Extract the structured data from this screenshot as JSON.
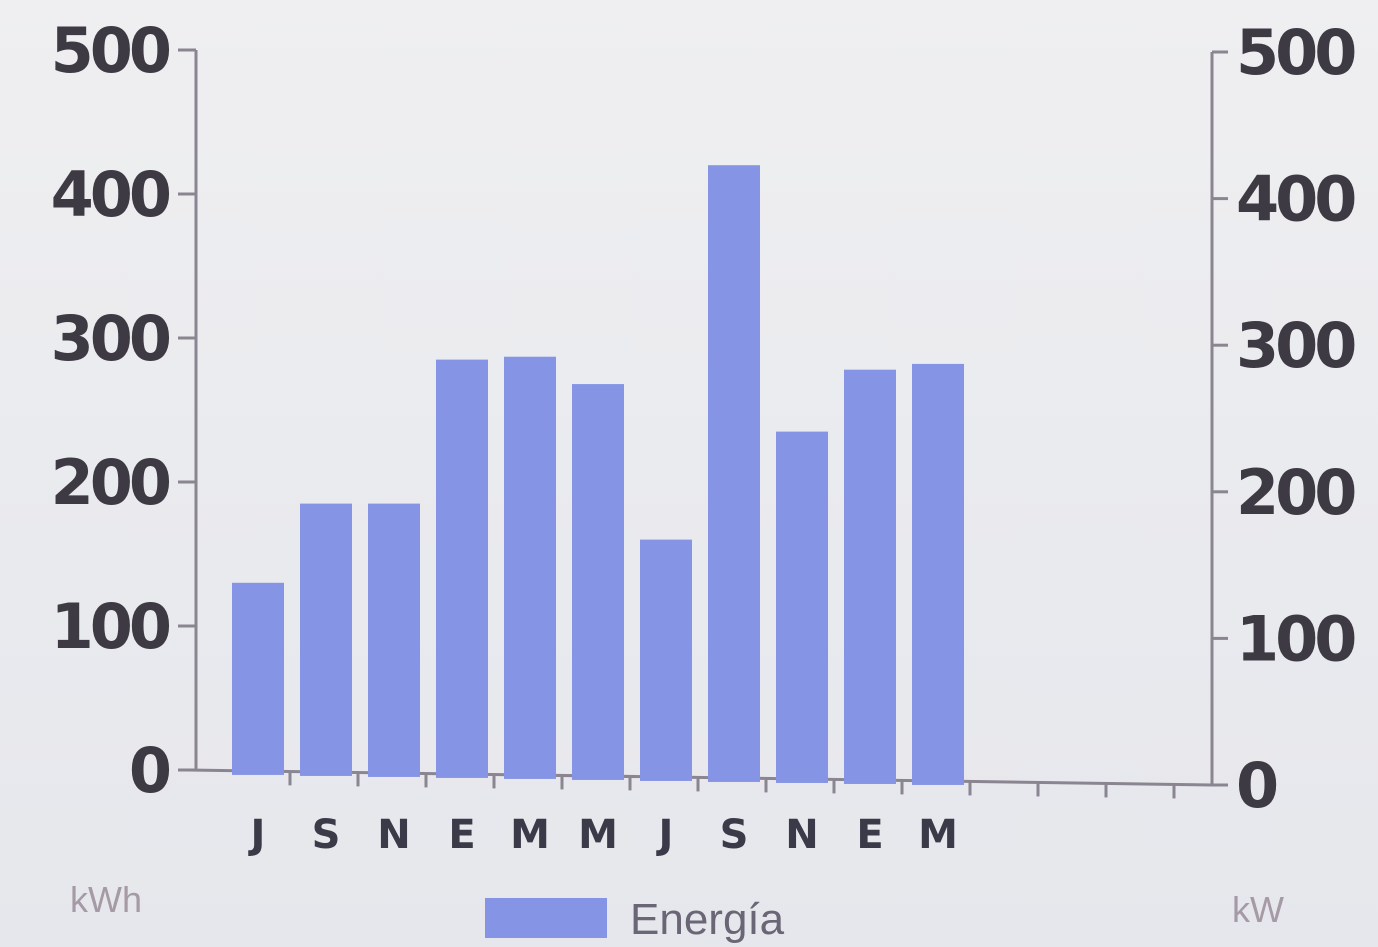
{
  "chart_data": {
    "type": "bar",
    "categories": [
      "J",
      "S",
      "N",
      "E",
      "M",
      "M",
      "J",
      "S",
      "N",
      "E",
      "M",
      "",
      "",
      ""
    ],
    "series": [
      {
        "name": "Energía",
        "values": [
          130,
          185,
          185,
          285,
          287,
          268,
          160,
          420,
          235,
          278,
          282,
          null,
          null,
          null
        ]
      }
    ],
    "ylim": [
      0,
      500
    ],
    "yticks": [
      0,
      100,
      200,
      300,
      400,
      500
    ],
    "y2lim": [
      0,
      500
    ],
    "y2ticks": [
      0,
      100,
      200,
      300,
      400,
      500
    ],
    "ylabel": "kWh",
    "y2label": "kW",
    "grid": false,
    "legend": "bottom",
    "colors": {
      "bar": "#8594e4",
      "axis": "#8a8590",
      "tick": "#3e3a44"
    }
  }
}
